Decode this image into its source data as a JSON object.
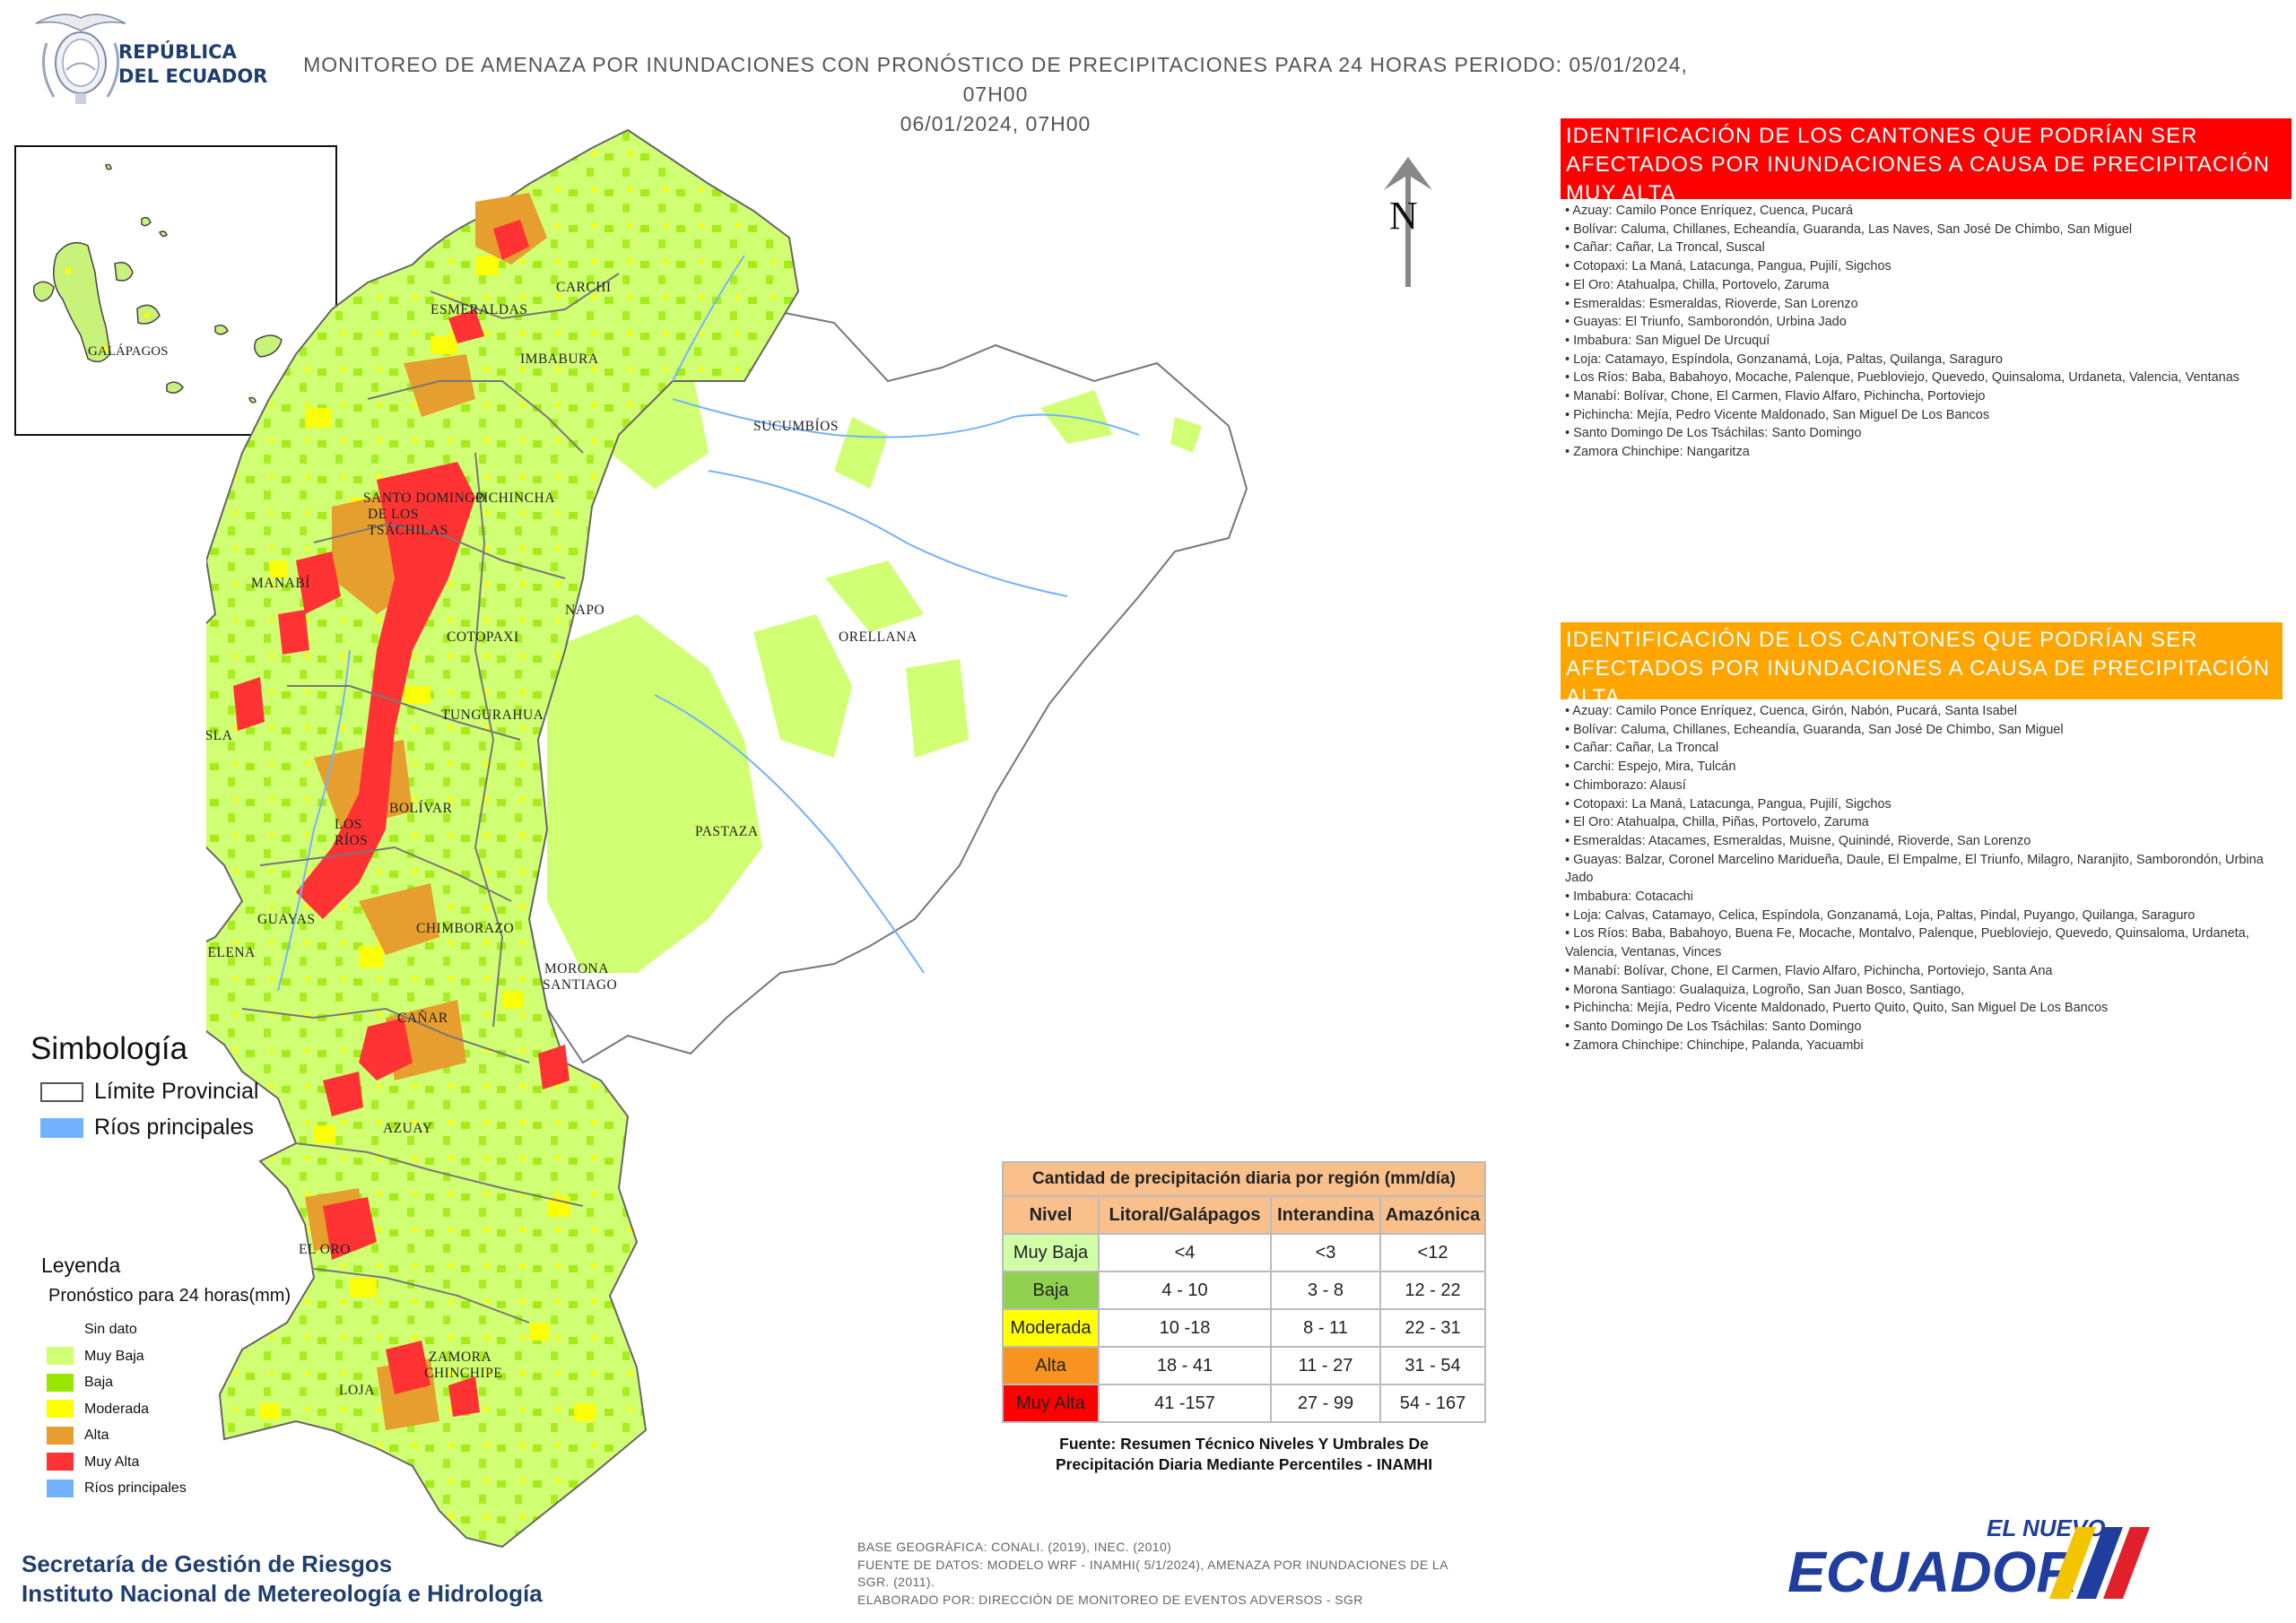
{
  "logo": {
    "line1": "REPÚBLICA",
    "line2": "DEL ECUADOR"
  },
  "title": {
    "line1": "MONITOREO DE AMENAZA POR INUNDACIONES  CON PRONÓSTICO DE  PRECIPITACIONES PARA 24 HORAS  PERIODO: 05/01/2024, 07H00",
    "line2": "06/01/2024, 07H00"
  },
  "inset_label": "GALÁPAGOS",
  "north_label": "N",
  "map_labels": {
    "esmeraldas": "ESMERALDAS",
    "carchi": "CARCHI",
    "imbabura": "IMBABURA",
    "sucumbios": "SUCUMBÍOS",
    "santo_domingo_1": "SANTO DOMINGO",
    "santo_domingo_2": "DE LOS",
    "santo_domingo_3": "TSÁCHILAS",
    "pichincha": "PICHINCHA",
    "manabi": "MANABÍ",
    "napo": "NAPO",
    "orellana": "ORELLANA",
    "cotopaxi": "COTOPAXI",
    "isla": "ISLA",
    "tungurahua": "TUNGURAHUA",
    "los_rios_1": "LOS",
    "los_rios_2": "RÍOS",
    "bolivar": "BOLÍVAR",
    "pastaza": "PASTAZA",
    "guayas": "GUAYAS",
    "santa_elena": "SANTA ELENA",
    "chimborazo": "CHIMBORAZO",
    "morona_1": "MORONA",
    "morona_2": "SANTIAGO",
    "canar": "CAÑAR",
    "azuay": "AZUAY",
    "el_oro": "EL ORO",
    "zamora_1": "ZAMORA",
    "zamora_2": "CHINCHIPE",
    "loja": "LOJA"
  },
  "red_panel": {
    "header": "IDENTIFICACIÓN DE LOS CANTONES QUE PODRÍAN SER AFECTADOS POR INUNDACIONES  A CAUSA DE PRECIPITACIÓN MUY ALTA",
    "items": [
      "• Azuay: Camilo Ponce Enríquez, Cuenca, Pucará",
      "• Bolívar: Caluma, Chillanes, Echeandía, Guaranda, Las Naves, San José De Chimbo, San Miguel",
      "• Cañar: Cañar, La Troncal, Suscal",
      "• Cotopaxi: La Maná, Latacunga, Pangua, Pujilí, Sigchos",
      "• El Oro: Atahualpa, Chilla, Portovelo, Zaruma",
      "• Esmeraldas: Esmeraldas, Rioverde, San Lorenzo",
      "• Guayas: El Triunfo, Samborondón, Urbina Jado",
      "• Imbabura: San Miguel De Urcuquí",
      "• Loja: Catamayo, Espíndola, Gonzanamá, Loja, Paltas, Quilanga, Saraguro",
      "• Los Ríos: Baba, Babahoyo, Mocache, Palenque, Puebloviejo, Quevedo, Quinsaloma, Urdaneta, Valencia, Ventanas",
      "• Manabí: Bolívar, Chone, El Carmen, Flavio Alfaro, Pichincha, Portoviejo",
      "• Pichincha: Mejía, Pedro Vicente Maldonado, San Miguel De Los Bancos",
      "• Santo Domingo De Los Tsáchilas: Santo Domingo",
      "• Zamora Chinchipe: Nangaritza"
    ]
  },
  "orange_panel": {
    "header": "IDENTIFICACIÓN DE LOS CANTONES QUE  PODRÍAN SER AFECTADOS POR INUNDACIONES  A CAUSA DE PRECIPITACIÓN  ALTA",
    "items": [
      "• Azuay: Camilo Ponce Enríquez, Cuenca, Girón, Nabón, Pucará, Santa Isabel",
      "• Bolívar: Caluma, Chillanes, Echeandía, Guaranda, San José De Chimbo, San Miguel",
      "• Cañar: Cañar, La Troncal",
      "• Carchi: Espejo, Mira, Tulcán",
      "• Chimborazo: Alausí",
      "• Cotopaxi: La Maná, Latacunga, Pangua, Pujilí, Sigchos",
      "• El Oro: Atahualpa, Chilla, Piñas, Portovelo, Zaruma",
      "• Esmeraldas: Atacames, Esmeraldas, Muisne, Quinindé, Rioverde, San Lorenzo",
      "• Guayas: Balzar, Coronel Marcelino Maridueña, Daule, El Empalme, El Triunfo, Milagro, Naranjito, Samborondón, Urbina Jado",
      "• Imbabura: Cotacachi",
      "• Loja: Calvas, Catamayo, Celica, Espíndola, Gonzanamá, Loja, Paltas, Pindal, Puyango, Quilanga, Saraguro",
      "• Los Ríos: Baba, Babahoyo, Buena Fe, Mocache, Montalvo, Palenque, Puebloviejo, Quevedo, Quinsaloma, Urdaneta, Valencia, Ventanas, Vinces",
      "• Manabí: Bolívar, Chone, El Carmen, Flavio Alfaro, Pichincha, Portoviejo, Santa Ana",
      "• Morona Santiago: Gualaquiza, Logroño, San Juan Bosco, Santiago,",
      "• Pichincha: Mejía, Pedro Vicente Maldonado, Puerto Quito, Quito, San Miguel De Los Bancos",
      "• Santo Domingo De Los Tsáchilas: Santo Domingo",
      "• Zamora Chinchipe: Chinchipe, Palanda, Yacuambi"
    ]
  },
  "simbologia": {
    "title": "Simbología",
    "items": [
      {
        "label": "Límite Provincial",
        "color": "#ffffff"
      },
      {
        "label": "Ríos principales",
        "color": "#73b2ff"
      }
    ]
  },
  "leyenda": {
    "title": "Leyenda",
    "subtitle": "Pronóstico para 24 horas(mm)",
    "items": [
      {
        "label": "Sin dato",
        "color": "#ffffff"
      },
      {
        "label": "Muy Baja",
        "color": "#d1ff73"
      },
      {
        "label": "Baja",
        "color": "#98e600"
      },
      {
        "label": "Moderada",
        "color": "#ffff00"
      },
      {
        "label": "Alta",
        "color": "#e69f2e"
      },
      {
        "label": "Muy Alta",
        "color": "#ff3333"
      },
      {
        "label": "Ríos principales",
        "color": "#73b2ff"
      }
    ]
  },
  "precip_table": {
    "caption": "Cantidad de precipitación diaria por región (mm/día)",
    "headers": [
      "Nivel",
      "Litoral/Galápagos",
      "Interandina",
      "Amazónica"
    ],
    "rows": [
      {
        "nivel": "Muy Baja",
        "color": "#d1ffa8",
        "litoral": "<4",
        "interandina": "<3",
        "amazonica": "<12"
      },
      {
        "nivel": "Baja",
        "color": "#8fd14f",
        "litoral": "4 - 10",
        "interandina": "3 - 8",
        "amazonica": "12 - 22"
      },
      {
        "nivel": "Moderada",
        "color": "#ffff00",
        "litoral": "10 -18",
        "interandina": "8 - 11",
        "amazonica": "22 - 31"
      },
      {
        "nivel": "Alta",
        "color": "#f7931e",
        "litoral": "18 - 41",
        "interandina": "11 - 27",
        "amazonica": "31 - 54"
      },
      {
        "nivel": "Muy Alta",
        "color": "#ff0000",
        "litoral": "41 -157",
        "interandina": "27 - 99",
        "amazonica": "54 - 167"
      }
    ],
    "source_line1": "Fuente: Resumen Técnico Niveles Y Umbrales De",
    "source_line2": "Precipitación Diaria Mediante Percentiles - INAMHI"
  },
  "footer": {
    "org1": "Secretaría de Gestión de Riesgos",
    "org2": "Instituto Nacional de Metereología e Hidrología",
    "note1": "BASE GEOGRÁFICA: CONALI. (2019), INEC. (2010)",
    "note2": "FUENTE DE DATOS: MODELO WRF - INAMHI( 5/1/2024),  AMENAZA POR INUNDACIONES DE LA",
    "note3": "SGR. (2011).",
    "note4": "ELABORADO POR: DIRECCIÓN DE MONITOREO DE EVENTOS ADVERSOS - SGR",
    "brand1": "EL NUEVO",
    "brand2": "ECUADOR"
  }
}
